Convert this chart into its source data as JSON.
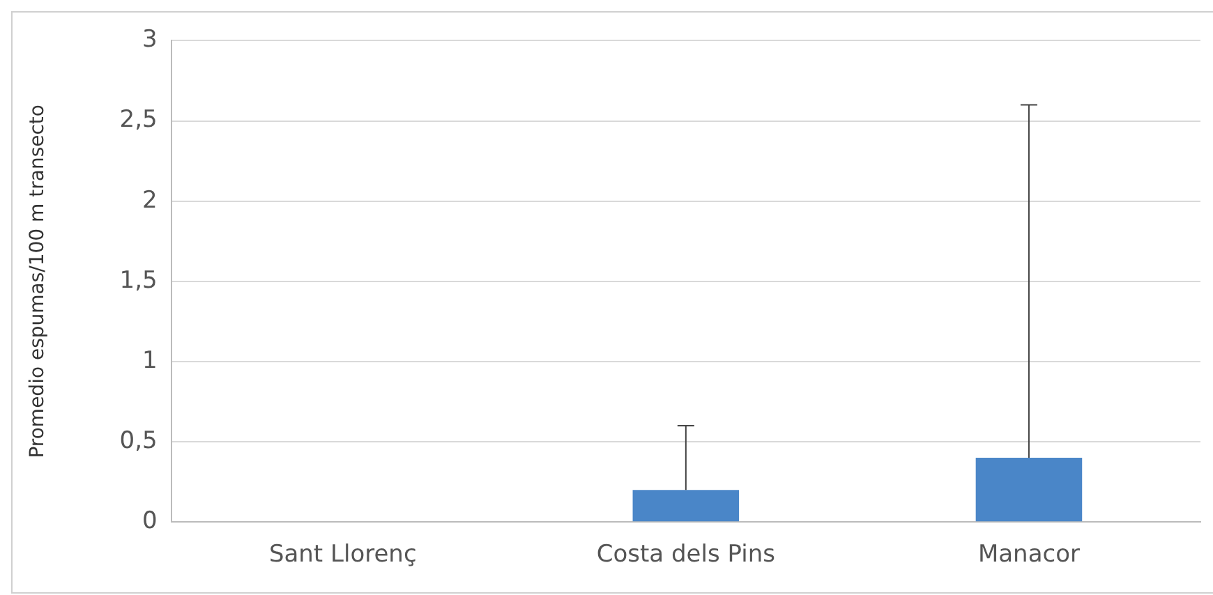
{
  "chart_data": {
    "type": "bar",
    "ylabel": "Promedio espumas/100 m transecto",
    "categories": [
      "Sant Llorenç",
      "Costa dels Pins",
      "Manacor"
    ],
    "values": [
      0,
      0.2,
      0.4
    ],
    "errors": [
      null,
      [
        0.2,
        0.6
      ],
      [
        0.4,
        2.6
      ]
    ],
    "color": "#4a86c8",
    "ylim": [
      0,
      3
    ],
    "yticks": [
      {
        "value": 0,
        "label": "0"
      },
      {
        "value": 0.5,
        "label": "0,5"
      },
      {
        "value": 1,
        "label": "1"
      },
      {
        "value": 1.5,
        "label": "1,5"
      },
      {
        "value": 2,
        "label": "2"
      },
      {
        "value": 2.5,
        "label": "2,5"
      },
      {
        "value": 3,
        "label": "3"
      }
    ],
    "grid": "y"
  }
}
